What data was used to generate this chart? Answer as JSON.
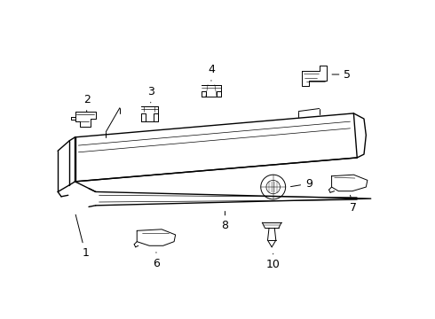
{
  "background_color": "#ffffff",
  "line_color": "#000000",
  "fig_width": 4.9,
  "fig_height": 3.6,
  "dpi": 100
}
